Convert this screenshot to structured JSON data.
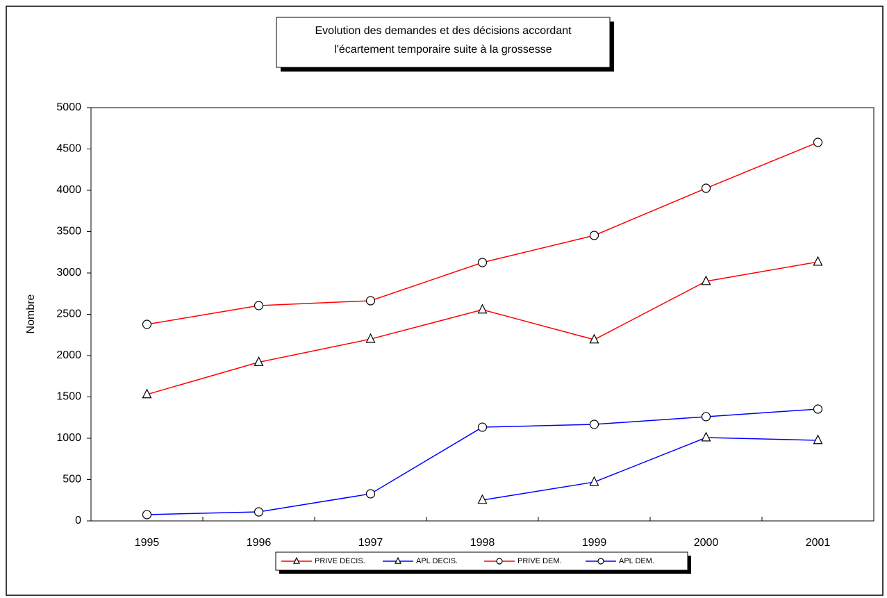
{
  "chart_data": {
    "type": "line",
    "title": [
      "Evolution des demandes et des décisions accordant",
      "l'écartement temporaire suite à la grossesse"
    ],
    "y_label": "Nombre",
    "categories": [
      "1995",
      "1996",
      "1997",
      "1998",
      "1999",
      "2000",
      "2001"
    ],
    "ylim": [
      0,
      5000
    ],
    "yticks": [
      0,
      500,
      1000,
      1500,
      2000,
      2500,
      3000,
      3500,
      4000,
      4500,
      5000
    ],
    "legend": "bottom",
    "series": [
      {
        "name": "PRIVE DECIS.",
        "color": "#ff0000",
        "marker": "triangle",
        "values": [
          1530,
          1920,
          2200,
          2555,
          2193,
          2899,
          3134
        ]
      },
      {
        "name": "APL DECIS.",
        "color": "#0000ff",
        "marker": "triangle",
        "values": [
          null,
          null,
          null,
          252,
          470,
          1008,
          975
        ]
      },
      {
        "name": "PRIVE DEM.",
        "color": "#ff0000",
        "marker": "circle",
        "values": [
          2378,
          2605,
          2664,
          3126,
          3454,
          4025,
          4580
        ]
      },
      {
        "name": "APL DEM.",
        "color": "#0000ff",
        "marker": "circle",
        "values": [
          76,
          109,
          328,
          1134,
          1168,
          1261,
          1353
        ]
      }
    ]
  }
}
